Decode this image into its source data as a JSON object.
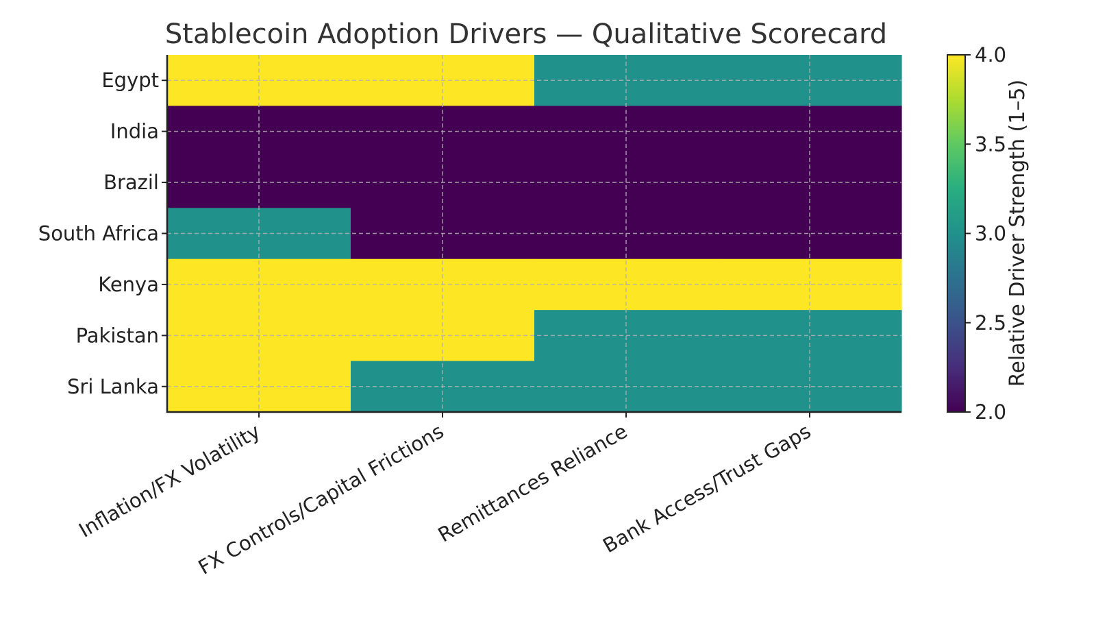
{
  "chart_data": {
    "type": "heatmap",
    "title": "Stablecoin Adoption Drivers — Qualitative Scorecard",
    "x_categories": [
      "Inflation/FX Volatility",
      "FX Controls/Capital Frictions",
      "Remittances Reliance",
      "Bank Access/Trust Gaps"
    ],
    "y_categories": [
      "Egypt",
      "India",
      "Brazil",
      "South Africa",
      "Kenya",
      "Pakistan",
      "Sri Lanka"
    ],
    "values": [
      [
        4,
        4,
        3,
        3
      ],
      [
        2,
        2,
        2,
        2
      ],
      [
        2,
        2,
        2,
        2
      ],
      [
        3,
        2,
        2,
        2
      ],
      [
        4,
        4,
        4,
        4
      ],
      [
        4,
        4,
        3,
        3
      ],
      [
        4,
        3,
        3,
        3
      ]
    ],
    "colorbar": {
      "label": "Relative Driver Strength (1–5)",
      "range": [
        2.0,
        4.0
      ],
      "ticks": [
        "2.0",
        "2.5",
        "3.0",
        "3.5",
        "4.0"
      ],
      "colormap": "viridis"
    },
    "grid": true
  }
}
